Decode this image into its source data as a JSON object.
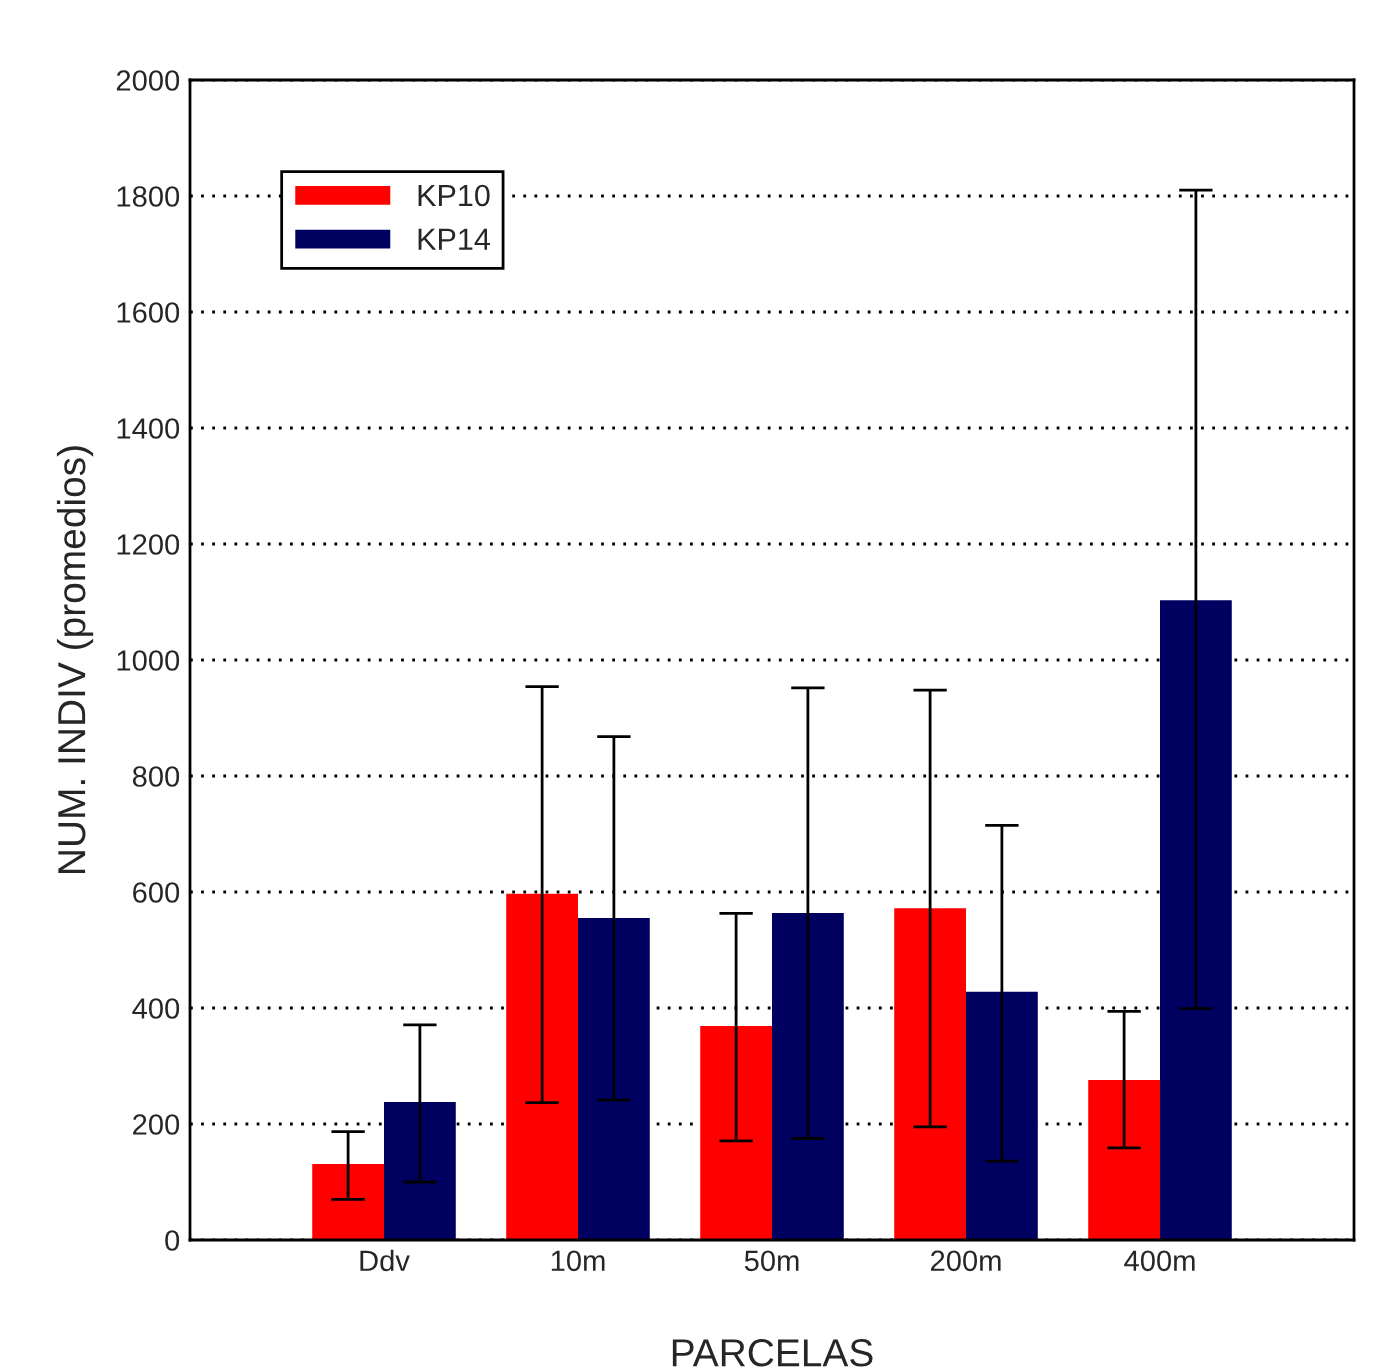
{
  "chart_data": {
    "type": "bar",
    "xlabel": "PARCELAS",
    "ylabel": "NUM. INDIV (promedios)",
    "categories": [
      "Ddv",
      "10m",
      "50m",
      "200m",
      "400m"
    ],
    "series": [
      {
        "name": "KP10",
        "color": "#ff0000",
        "values": [
          131,
          597,
          369,
          572,
          276
        ],
        "errors": [
          [
            70,
            187
          ],
          [
            237,
            954
          ],
          [
            171,
            563
          ],
          [
            195,
            948
          ],
          [
            159,
            394
          ]
        ]
      },
      {
        "name": "KP14",
        "color": "#000060",
        "values": [
          238,
          555,
          564,
          428,
          1103
        ],
        "errors": [
          [
            100,
            371
          ],
          [
            241,
            868
          ],
          [
            175,
            952
          ],
          [
            136,
            715
          ],
          [
            399,
            1810
          ]
        ]
      }
    ],
    "ylim": [
      0,
      2000
    ],
    "yticks": [
      0,
      200,
      400,
      600,
      800,
      1000,
      1200,
      1400,
      1600,
      1800,
      2000
    ],
    "grid": "y",
    "legend": "top left"
  }
}
